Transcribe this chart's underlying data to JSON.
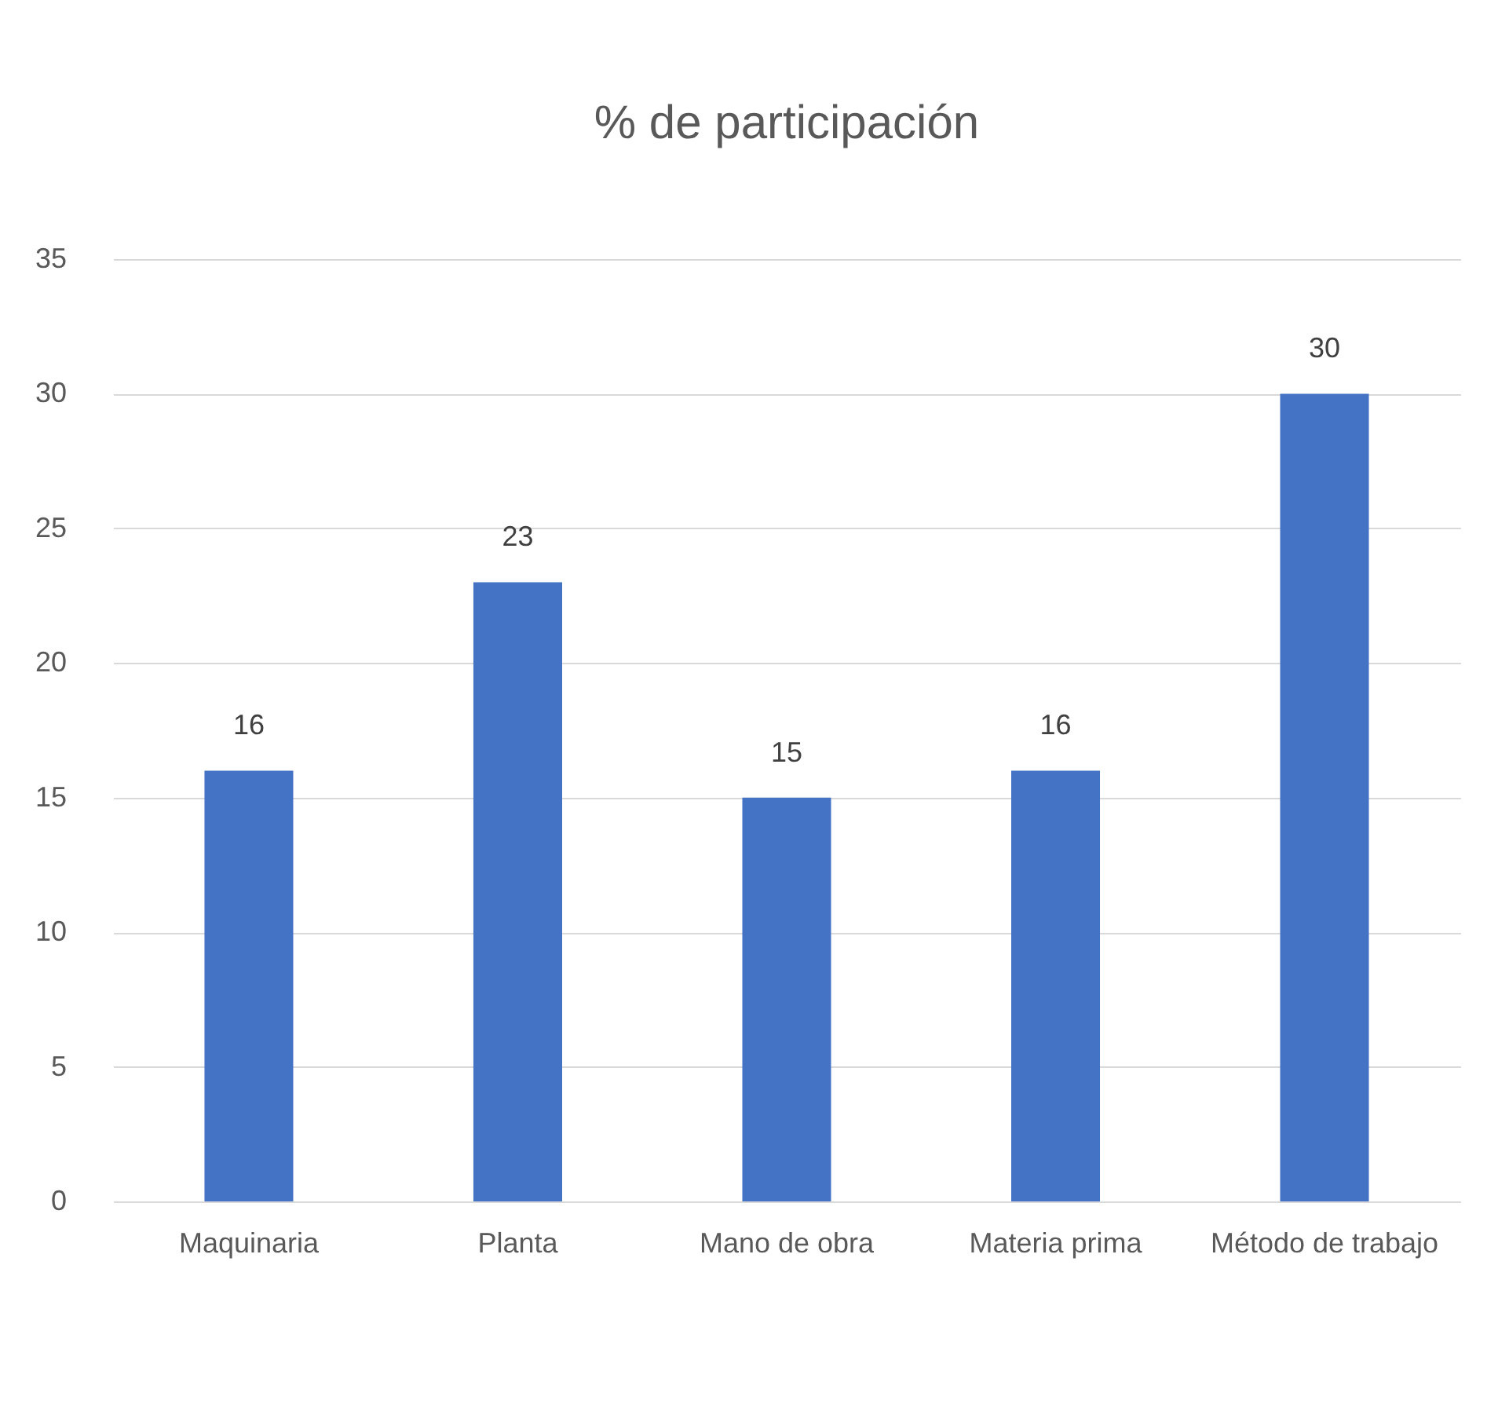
{
  "chart_data": {
    "type": "bar",
    "title": "% de participación",
    "categories": [
      "Maquinaria",
      "Planta",
      "Mano de obra",
      "Materia prima",
      "Método de trabajo"
    ],
    "values": [
      16,
      23,
      15,
      16,
      30
    ],
    "color": "#4472c4",
    "ylim": [
      0,
      35
    ],
    "yticks": [
      0,
      5,
      10,
      15,
      20,
      25,
      30,
      35
    ],
    "grid": "y",
    "data_labels": true
  }
}
